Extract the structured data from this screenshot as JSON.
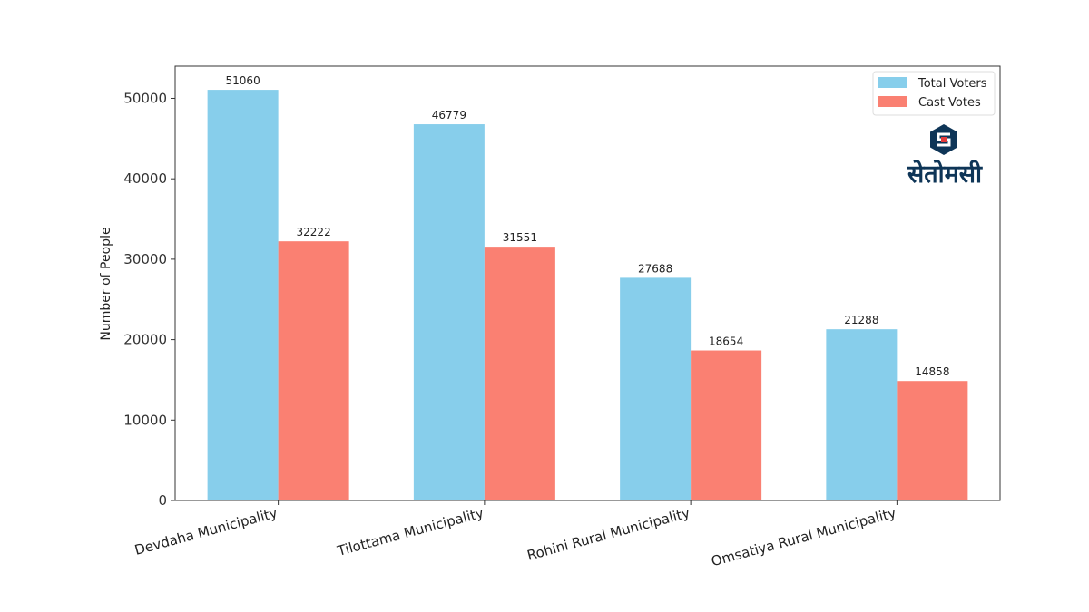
{
  "chart_data": {
    "type": "bar",
    "title": "",
    "xlabel": "",
    "ylabel": "Number of People",
    "ylim": [
      0,
      54000
    ],
    "yticks": [
      0,
      10000,
      20000,
      30000,
      40000,
      50000
    ],
    "categories": [
      "Devdaha Municipality",
      "Tilottama Municipality",
      "Rohini Rural Municipality",
      "Omsatiya Rural Municipality"
    ],
    "series": [
      {
        "name": "Total Voters",
        "color": "#87ceeb",
        "values": [
          51060,
          46779,
          27688,
          21288
        ]
      },
      {
        "name": "Cast Votes",
        "color": "#fa8072",
        "values": [
          32222,
          31551,
          18654,
          14858
        ]
      }
    ],
    "legend_position": "top-right",
    "grid": false
  },
  "branding": {
    "logo_text": "सेतोमसी",
    "logo_icon": "setopati-logo-icon",
    "brand_color": "#0e3557"
  }
}
